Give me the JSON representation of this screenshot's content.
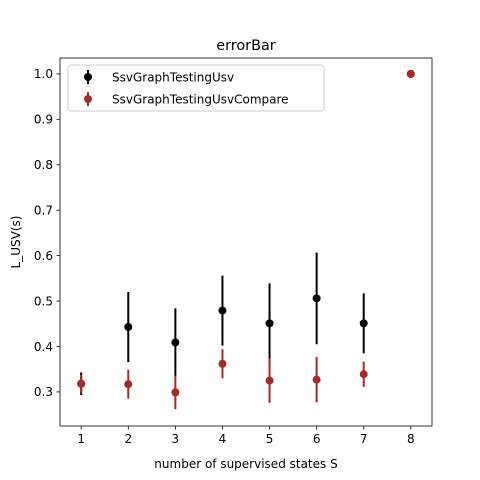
{
  "chart_data": {
    "type": "scatter",
    "title": "errorBar",
    "xlabel": "number of supervised states S",
    "ylabel": "L_USV(s)",
    "xlim": [
      0.55,
      8.45
    ],
    "ylim": [
      0.225,
      1.035
    ],
    "xticks": [
      1,
      2,
      3,
      4,
      5,
      6,
      7,
      8
    ],
    "xtick_labels": [
      "1",
      "2",
      "3",
      "4",
      "5",
      "6",
      "7",
      "8"
    ],
    "yticks": [
      0.3,
      0.4,
      0.5,
      0.6,
      0.7,
      0.8,
      0.9,
      1.0
    ],
    "ytick_labels": [
      "0.3",
      "0.4",
      "0.5",
      "0.6",
      "0.7",
      "0.8",
      "0.9",
      "1.0"
    ],
    "grid": false,
    "legend_position": "top-left",
    "series": [
      {
        "name": "SsvGraphTestingUsv",
        "color": "#000000",
        "x": [
          1,
          2,
          3,
          4,
          5,
          6,
          7,
          8
        ],
        "y": [
          0.318,
          0.443,
          0.409,
          0.479,
          0.451,
          0.506,
          0.451,
          1.0
        ],
        "err": [
          0.025,
          0.077,
          0.075,
          0.077,
          0.088,
          0.101,
          0.066,
          0.0
        ]
      },
      {
        "name": "SsvGraphTestingUsvCompare",
        "color": "#a52a2a",
        "x": [
          1,
          2,
          3,
          4,
          5,
          6,
          7,
          8
        ],
        "y": [
          0.318,
          0.317,
          0.299,
          0.362,
          0.325,
          0.327,
          0.339,
          1.0
        ],
        "err": [
          0.02,
          0.032,
          0.037,
          0.032,
          0.049,
          0.05,
          0.028,
          0.0
        ]
      }
    ]
  }
}
